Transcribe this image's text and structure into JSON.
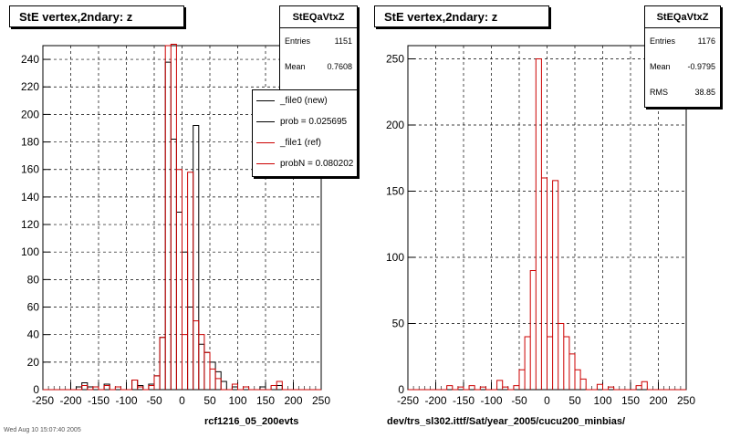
{
  "chart_data": [
    {
      "type": "histogram",
      "title": "StE  vertex,2ndary: z",
      "xlim": [
        -250,
        250
      ],
      "ylim": [
        0,
        250
      ],
      "grid": true,
      "x_ticks": [
        -250,
        -200,
        -150,
        -100,
        -50,
        0,
        50,
        100,
        150,
        200,
        250
      ],
      "y_ticks": [
        0,
        20,
        40,
        60,
        80,
        100,
        120,
        140,
        160,
        180,
        200,
        220,
        240
      ],
      "bin_width": 10,
      "series": [
        {
          "name": "_file0 (new)",
          "color": "#000000",
          "bins": [
            [
              -190,
              -180,
              2
            ],
            [
              -180,
              -170,
              5
            ],
            [
              -170,
              -160,
              2
            ],
            [
              -140,
              -130,
              4
            ],
            [
              -90,
              -80,
              7
            ],
            [
              -80,
              -70,
              3
            ],
            [
              -60,
              -50,
              4
            ],
            [
              -50,
              -40,
              10
            ],
            [
              -40,
              -30,
              38
            ],
            [
              -30,
              -20,
              238
            ],
            [
              -20,
              -10,
              182
            ],
            [
              -10,
              0,
              129
            ],
            [
              0,
              10,
              100
            ],
            [
              10,
              20,
              60
            ],
            [
              20,
              30,
              192
            ],
            [
              30,
              40,
              33
            ],
            [
              40,
              50,
              27
            ],
            [
              50,
              60,
              20
            ],
            [
              60,
              70,
              13
            ],
            [
              70,
              80,
              6
            ],
            [
              90,
              100,
              2
            ],
            [
              140,
              150,
              2
            ],
            [
              170,
              180,
              3
            ]
          ]
        },
        {
          "name": "_file1 (ref)",
          "color": "#cc0000",
          "bins": [
            [
              -180,
              -170,
              3
            ],
            [
              -160,
              -150,
              2
            ],
            [
              -140,
              -130,
              3
            ],
            [
              -120,
              -110,
              2
            ],
            [
              -90,
              -80,
              7
            ],
            [
              -80,
              -70,
              2
            ],
            [
              -60,
              -50,
              3
            ],
            [
              -50,
              -40,
              10
            ],
            [
              -40,
              -30,
              38
            ],
            [
              -30,
              -20,
              250
            ],
            [
              -20,
              -10,
              251
            ],
            [
              -10,
              0,
              160
            ],
            [
              0,
              10,
              40
            ],
            [
              10,
              20,
              158
            ],
            [
              20,
              30,
              50
            ],
            [
              30,
              40,
              40
            ],
            [
              40,
              50,
              27
            ],
            [
              50,
              60,
              15
            ],
            [
              60,
              70,
              8
            ],
            [
              90,
              100,
              4
            ],
            [
              110,
              120,
              2
            ],
            [
              160,
              170,
              3
            ],
            [
              170,
              180,
              6
            ]
          ]
        }
      ]
    },
    {
      "type": "histogram",
      "title": "StE  vertex,2ndary: z",
      "xlim": [
        -250,
        250
      ],
      "ylim": [
        0,
        260
      ],
      "grid": true,
      "x_ticks": [
        -250,
        -200,
        -150,
        -100,
        -50,
        0,
        50,
        100,
        150,
        200,
        250
      ],
      "y_ticks": [
        0,
        50,
        100,
        150,
        200,
        250
      ],
      "bin_width": 10,
      "series": [
        {
          "name": "",
          "color": "#cc0000",
          "bins": [
            [
              -180,
              -170,
              3
            ],
            [
              -160,
              -150,
              2
            ],
            [
              -140,
              -130,
              3
            ],
            [
              -120,
              -110,
              2
            ],
            [
              -90,
              -80,
              7
            ],
            [
              -80,
              -70,
              2
            ],
            [
              -60,
              -50,
              3
            ],
            [
              -50,
              -40,
              15
            ],
            [
              -40,
              -30,
              40
            ],
            [
              -30,
              -20,
              90
            ],
            [
              -20,
              -10,
              250
            ],
            [
              -10,
              0,
              160
            ],
            [
              0,
              10,
              40
            ],
            [
              10,
              20,
              158
            ],
            [
              20,
              30,
              50
            ],
            [
              30,
              40,
              40
            ],
            [
              40,
              50,
              27
            ],
            [
              50,
              60,
              15
            ],
            [
              60,
              70,
              8
            ],
            [
              90,
              100,
              4
            ],
            [
              110,
              120,
              2
            ],
            [
              160,
              170,
              3
            ],
            [
              170,
              180,
              6
            ]
          ]
        }
      ]
    }
  ],
  "panel_left": {
    "title": "StE  vertex,2ndary: z",
    "stats": {
      "name": "StEQaVtxZ",
      "entries_label": "Entries",
      "entries_value": "1151",
      "mean_label": "Mean",
      "mean_value": "0.7608"
    },
    "legend": [
      {
        "label": "_file0 (new)",
        "color": "#000000"
      },
      {
        "label": "prob = 0.025695",
        "color": "#000000"
      },
      {
        "label": "_file1 (ref)",
        "color": "#cc0000"
      },
      {
        "label": "probN = 0.080202",
        "color": "#cc0000"
      }
    ],
    "subtitle": "rcf1216_05_200evts"
  },
  "panel_right": {
    "title": "StE  vertex,2ndary: z",
    "stats": {
      "name": "StEQaVtxZ",
      "entries_label": "Entries",
      "entries_value": "1176",
      "mean_label": "Mean",
      "mean_value": "-0.9795",
      "rms_label": "RMS",
      "rms_value": "38.85"
    },
    "subtitle": "dev/trs_sl302.ittf/Sat/year_2005/cucu200_minbias/"
  },
  "footer": "Wed Aug 10 15:07:40 2005"
}
